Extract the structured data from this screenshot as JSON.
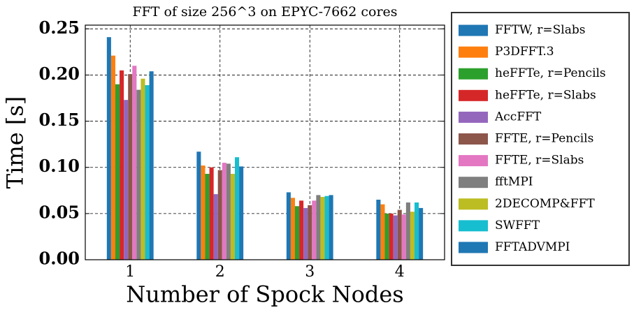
{
  "chart_data": {
    "type": "bar",
    "title": "FFT of size 256^3 on EPYC-7662 cores",
    "xlabel": "Number of Spock Nodes",
    "ylabel": "Time [s]",
    "categories": [
      "1",
      "2",
      "3",
      "4"
    ],
    "series": [
      {
        "name": "FFTW, r=Slabs",
        "color": "#1f77b4",
        "values": [
          0.241,
          0.117,
          0.073,
          0.065
        ]
      },
      {
        "name": "P3DFFT.3",
        "color": "#ff7f0e",
        "values": [
          0.221,
          0.102,
          0.067,
          0.06
        ]
      },
      {
        "name": "heFFTe, r=Pencils",
        "color": "#2ca02c",
        "values": [
          0.19,
          0.093,
          0.058,
          0.05
        ]
      },
      {
        "name": "heFFTe, r=Slabs",
        "color": "#d62728",
        "values": [
          0.205,
          0.1,
          0.064,
          0.05
        ]
      },
      {
        "name": "AccFFT",
        "color": "#9467bd",
        "values": [
          0.173,
          0.071,
          0.056,
          0.048
        ]
      },
      {
        "name": "FFTE, r=Pencils",
        "color": "#8c564b",
        "values": [
          0.201,
          0.097,
          0.059,
          0.054
        ]
      },
      {
        "name": "FFTE, r=Slabs",
        "color": "#e377c2",
        "values": [
          0.21,
          0.105,
          0.064,
          0.049
        ]
      },
      {
        "name": "fftMPI",
        "color": "#7f7f7f",
        "values": [
          0.184,
          0.104,
          0.07,
          0.062
        ]
      },
      {
        "name": "2DECOMP&FFT",
        "color": "#bcbd22",
        "values": [
          0.196,
          0.093,
          0.068,
          0.052
        ]
      },
      {
        "name": "SWFFT",
        "color": "#17becf",
        "values": [
          0.189,
          0.111,
          0.069,
          0.062
        ]
      },
      {
        "name": "FFTADVMPI",
        "color": "#1f77b4",
        "values": [
          0.204,
          0.101,
          0.07,
          0.056
        ]
      }
    ],
    "ylim": [
      0,
      0.254
    ],
    "yticks": [
      {
        "value": 0,
        "label": "0.00"
      },
      0.05,
      {
        "value": 0.1,
        "label": "0.10"
      },
      0.15,
      {
        "value": 0.2,
        "label": "0.20"
      },
      0.25
    ],
    "grid": true,
    "legend": "outside right"
  }
}
